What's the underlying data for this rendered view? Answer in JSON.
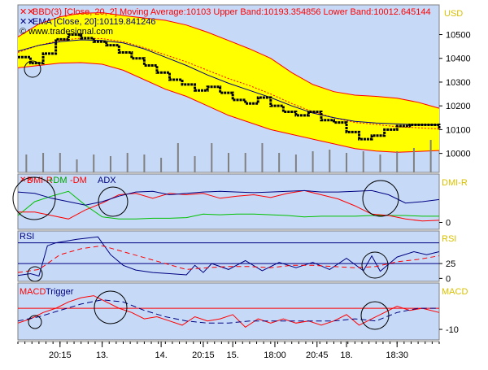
{
  "chart_data": [
    {
      "type": "line",
      "panel": "price",
      "title_line1": "BBD(3) [Close, 20, 2] Moving Average:10103 Upper Band:10193.354856 Lower Band:10012.645144",
      "title_line2": "EMA [Close, 20]:10119.841246",
      "watermark": "© www.tradesignal.com",
      "right_label": "USD",
      "yticks": [
        10000,
        10100,
        10200,
        10300,
        10400,
        10500
      ],
      "ylim": [
        9920,
        10625
      ],
      "xlim": [
        0,
        100
      ],
      "series": [
        {
          "role": "upper_band",
          "x": [
            0,
            5,
            10,
            15,
            20,
            25,
            30,
            35,
            40,
            45,
            50,
            55,
            60,
            65,
            70,
            75,
            80,
            85,
            90,
            95,
            100
          ],
          "values": [
            10490,
            10545,
            10575,
            10590,
            10592,
            10580,
            10570,
            10560,
            10540,
            10510,
            10475,
            10440,
            10400,
            10340,
            10290,
            10260,
            10245,
            10240,
            10232,
            10215,
            10190
          ]
        },
        {
          "role": "lower_band",
          "x": [
            0,
            5,
            10,
            15,
            20,
            25,
            30,
            35,
            40,
            45,
            50,
            55,
            60,
            65,
            70,
            75,
            80,
            85,
            90,
            95,
            100
          ],
          "values": [
            10360,
            10370,
            10380,
            10382,
            10375,
            10350,
            10310,
            10270,
            10240,
            10200,
            10160,
            10130,
            10100,
            10080,
            10060,
            10040,
            10020,
            10010,
            10005,
            10008,
            10012
          ]
        },
        {
          "role": "moving_average",
          "x": [
            0,
            5,
            10,
            15,
            20,
            25,
            30,
            35,
            40,
            45,
            50,
            55,
            60,
            65,
            70,
            75,
            80,
            85,
            90,
            95,
            100
          ],
          "values": [
            10425,
            10455,
            10475,
            10485,
            10483,
            10470,
            10445,
            10415,
            10385,
            10350,
            10315,
            10285,
            10250,
            10210,
            10175,
            10150,
            10130,
            10122,
            10112,
            10108,
            10103
          ]
        },
        {
          "role": "ema",
          "x": [
            0,
            5,
            10,
            15,
            20,
            25,
            30,
            35,
            40,
            45,
            50,
            55,
            60,
            65,
            70,
            75,
            80,
            85,
            90,
            95,
            100
          ],
          "values": [
            10430,
            10455,
            10470,
            10478,
            10475,
            10465,
            10440,
            10405,
            10370,
            10330,
            10295,
            10265,
            10235,
            10200,
            10170,
            10150,
            10135,
            10128,
            10124,
            10121,
            10120
          ]
        },
        {
          "role": "close",
          "x": [
            0,
            3,
            6,
            9,
            12,
            15,
            18,
            21,
            24,
            27,
            30,
            33,
            36,
            39,
            42,
            45,
            48,
            51,
            54,
            57,
            60,
            63,
            66,
            69,
            72,
            75,
            78,
            81,
            84,
            87,
            90,
            93,
            96,
            100
          ],
          "values": [
            10405,
            10380,
            10420,
            10480,
            10500,
            10485,
            10470,
            10455,
            10425,
            10400,
            10370,
            10340,
            10310,
            10290,
            10265,
            10280,
            10255,
            10225,
            10210,
            10235,
            10200,
            10175,
            10160,
            10175,
            10140,
            10130,
            10090,
            10060,
            10075,
            10100,
            10115,
            10120,
            10120,
            10100
          ]
        }
      ],
      "volume": {
        "x": [
          2,
          6,
          10,
          14,
          18,
          22,
          26,
          30,
          34,
          38,
          42,
          46,
          50,
          54,
          58,
          62,
          66,
          70,
          74,
          78,
          82,
          86,
          90,
          94,
          98
        ],
        "values": [
          0.55,
          0.6,
          0.6,
          0.4,
          0.55,
          0.5,
          0.6,
          0.55,
          0.45,
          0.9,
          0.5,
          0.9,
          0.6,
          0.6,
          0.9,
          0.6,
          0.55,
          0.65,
          0.7,
          0.6,
          0.65,
          0.55,
          0.65,
          0.75,
          1.0
        ]
      },
      "colors": {
        "upper_band": "#ff0000",
        "lower_band": "#ff0000",
        "band_fill": "#ffff00",
        "moving_average": "#ff0000",
        "ema": "#000080",
        "close": "#000000",
        "volume": "#808080",
        "background": "#c6daf8",
        "label": "#ff0000"
      }
    },
    {
      "type": "line",
      "panel": "dmi",
      "legend": [
        "DMI-R",
        "+DM",
        "-DM",
        "ADX"
      ],
      "right_label": "DMI-R",
      "yticks": [
        0
      ],
      "ylim": [
        -10,
        70
      ],
      "series": [
        {
          "name": "+DM",
          "x": [
            0,
            4,
            8,
            12,
            16,
            20,
            24,
            28,
            32,
            36,
            40,
            44,
            48,
            52,
            56,
            60,
            64,
            68,
            72,
            76,
            80,
            84,
            88,
            92,
            96,
            100
          ],
          "values": [
            10,
            30,
            38,
            45,
            25,
            8,
            5,
            5,
            6,
            6,
            7,
            12,
            11,
            12,
            12,
            11,
            10,
            8,
            9,
            9,
            9,
            10,
            10,
            10,
            9,
            9
          ]
        },
        {
          "name": "-DM",
          "x": [
            0,
            4,
            8,
            12,
            16,
            20,
            24,
            28,
            32,
            36,
            40,
            44,
            48,
            52,
            56,
            60,
            64,
            68,
            72,
            76,
            80,
            84,
            88,
            92,
            96,
            100
          ],
          "values": [
            15,
            15,
            10,
            5,
            18,
            28,
            40,
            42,
            35,
            42,
            40,
            42,
            35,
            38,
            40,
            36,
            42,
            46,
            40,
            34,
            24,
            12,
            10,
            5,
            2,
            3
          ]
        },
        {
          "name": "ADX",
          "x": [
            0,
            4,
            8,
            12,
            16,
            20,
            24,
            28,
            32,
            36,
            40,
            44,
            48,
            52,
            56,
            60,
            64,
            68,
            72,
            76,
            80,
            84,
            88,
            92,
            96,
            100
          ],
          "values": [
            44,
            42,
            35,
            30,
            25,
            30,
            38,
            44,
            45,
            40,
            42,
            44,
            45,
            44,
            43,
            44,
            45,
            46,
            44,
            44,
            45,
            46,
            40,
            28,
            30,
            33
          ]
        }
      ],
      "colors": {
        "+DM": "#00c000",
        "-DM": "#ff0000",
        "ADX": "#000080"
      }
    },
    {
      "type": "line",
      "panel": "rsi",
      "legend": [
        "RSI"
      ],
      "right_label": "RSI",
      "yticks": [
        0,
        25
      ],
      "ylim": [
        -5,
        80
      ],
      "series": [
        {
          "name": "RSI",
          "x": [
            0,
            3,
            5,
            7,
            9,
            14,
            19,
            22,
            25,
            28,
            32,
            36,
            40,
            42,
            44,
            46,
            50,
            54,
            58,
            62,
            66,
            70,
            74,
            78,
            82,
            84,
            86,
            90,
            94,
            97,
            100
          ],
          "values": [
            5,
            8,
            4,
            55,
            60,
            66,
            70,
            40,
            22,
            14,
            10,
            8,
            6,
            22,
            10,
            25,
            15,
            30,
            13,
            27,
            18,
            27,
            15,
            34,
            13,
            38,
            12,
            36,
            45,
            40,
            45
          ]
        },
        {
          "name": "RSI signal",
          "x": [
            0,
            5,
            10,
            15,
            20,
            25,
            30,
            35,
            40,
            45,
            50,
            55,
            60,
            65,
            70,
            75,
            80,
            85,
            90,
            95,
            100
          ],
          "values": [
            10,
            15,
            40,
            50,
            55,
            45,
            35,
            25,
            15,
            18,
            20,
            20,
            18,
            22,
            22,
            20,
            18,
            20,
            28,
            32,
            38
          ]
        }
      ],
      "reference_lines": [
        25,
        60
      ],
      "colors": {
        "RSI": "#000080",
        "RSI signal": "#ff0000"
      }
    },
    {
      "type": "line",
      "panel": "macd",
      "legend": [
        "MACD",
        "Trigger"
      ],
      "right_label": "MACD",
      "yticks": [
        -10
      ],
      "ylim": [
        -15,
        12
      ],
      "series": [
        {
          "name": "MACD",
          "x": [
            0,
            3,
            6,
            9,
            12,
            15,
            18,
            21,
            24,
            27,
            30,
            33,
            36,
            39,
            42,
            45,
            48,
            51,
            54,
            57,
            60,
            63,
            66,
            69,
            72,
            75,
            78,
            81,
            84,
            87,
            90,
            93,
            96,
            100
          ],
          "values": [
            -7,
            -5,
            -2,
            0,
            3,
            5,
            6,
            3,
            0,
            -2,
            -5,
            -4,
            -6,
            -8,
            -4,
            -6,
            -5,
            -3,
            -9,
            -5,
            -7,
            -5,
            -7,
            -6,
            -8,
            -6,
            -3,
            -8,
            -5,
            -2,
            1,
            -1,
            0,
            -2
          ]
        },
        {
          "name": "Trigger",
          "x": [
            0,
            5,
            10,
            15,
            20,
            25,
            30,
            35,
            40,
            45,
            50,
            55,
            60,
            65,
            70,
            75,
            80,
            85,
            90,
            95,
            100
          ],
          "values": [
            -6,
            -4,
            -1,
            2,
            4,
            3,
            -1,
            -4,
            -6,
            -7,
            -7,
            -6,
            -6,
            -6,
            -6,
            -6,
            -5,
            -6,
            -2,
            0,
            0
          ]
        }
      ],
      "zero_line": 0,
      "colors": {
        "MACD": "#ff0000",
        "Trigger": "#000080"
      }
    }
  ],
  "x_axis": {
    "ticks": [
      {
        "label": "20:15",
        "x": 10
      },
      {
        "label": "13.",
        "x": 20
      },
      {
        "label": "14.",
        "x": 34
      },
      {
        "label": "20:15",
        "x": 44
      },
      {
        "label": "15.",
        "x": 51
      },
      {
        "label": "18:00",
        "x": 61
      },
      {
        "label": "20:45",
        "x": 71
      },
      {
        "label": "18.",
        "x": 78
      },
      {
        "label": "18:30",
        "x": 90
      }
    ]
  }
}
